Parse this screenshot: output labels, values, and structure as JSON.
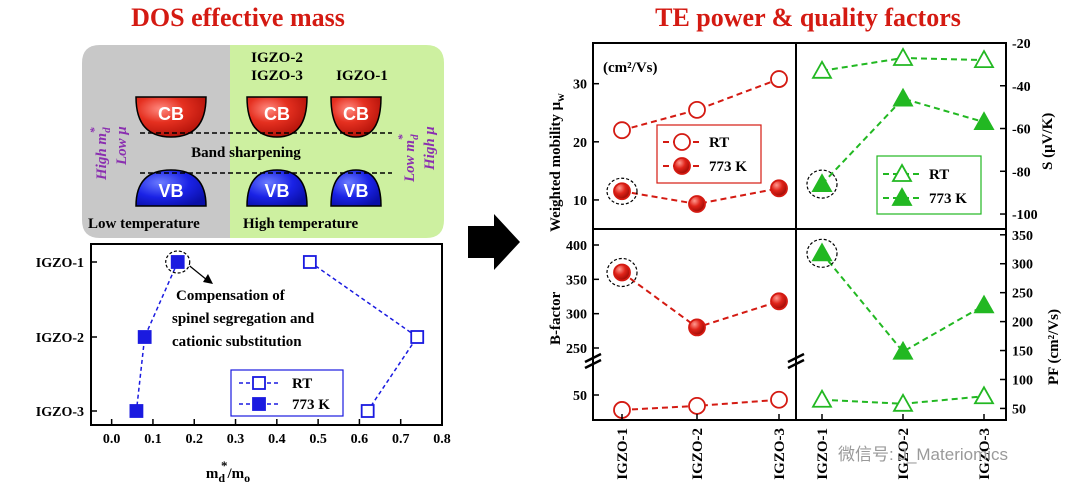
{
  "left_title": "DOS effective mass",
  "right_title": "TE power & quality factors",
  "schematic": {
    "cb": "CB",
    "vb": "VB",
    "band_sharpening": "Band sharpening",
    "low_temp": "Low temperature",
    "high_temp": "High temperature",
    "group1": "IGZO-2",
    "group1b": "IGZO-3",
    "group2": "IGZO-1",
    "left_high_md": "High m",
    "left_low_mu": "Low μ",
    "right_low_md": "Low m",
    "right_high_mu": "High μ",
    "md_sub": "d",
    "star": "*"
  },
  "colors": {
    "red": "#d41a12",
    "blue": "#1a1ae0",
    "green": "#22b822",
    "gray_bg": "#c8c8c8",
    "green_bg": "#cdf0a0",
    "purple": "#8a2fb0"
  },
  "chart_data": [
    {
      "id": "mass",
      "type": "scatter",
      "xlabel": "m",
      "xlabel_sub1": "d",
      "xlabel_star": "*",
      "xlabel_tail": "/m",
      "xlabel_sub2": "o",
      "xlim": [
        -0.05,
        0.8
      ],
      "xticks": [
        "0.0",
        "0.1",
        "0.2",
        "0.3",
        "0.4",
        "0.5",
        "0.6",
        "0.7",
        "0.8"
      ],
      "categories": [
        "IGZO-1",
        "IGZO-2",
        "IGZO-3"
      ],
      "series": [
        {
          "name": "RT",
          "values": [
            0.48,
            0.74,
            0.62
          ],
          "marker": "open-square"
        },
        {
          "name": "773 K",
          "values": [
            0.16,
            0.08,
            0.06
          ],
          "marker": "filled-square"
        }
      ],
      "annotation": [
        "Compensation of",
        "spinel segregation and",
        "cationic substitution"
      ]
    },
    {
      "id": "mobility",
      "type": "line",
      "ylabel": "Weighted mobility μ",
      "ylabel_sub": "w",
      "unit": "(cm²/Vs)",
      "ylim": [
        5,
        37
      ],
      "yticks": [
        10,
        20,
        30
      ],
      "categories": [
        "IGZO-1",
        "IGZO-2",
        "IGZO-3"
      ],
      "series": [
        {
          "name": "RT",
          "values": [
            22,
            25.5,
            30.8
          ]
        },
        {
          "name": "773 K",
          "values": [
            11.5,
            9.3,
            12
          ]
        }
      ]
    },
    {
      "id": "seebeck",
      "type": "line",
      "ylabel": "S (μV/K)",
      "ylim": [
        -107,
        -20
      ],
      "yticks": [
        -20,
        -40,
        -60,
        -80,
        -100
      ],
      "categories": [
        "IGZO-1",
        "IGZO-2",
        "IGZO-3"
      ],
      "series": [
        {
          "name": "RT",
          "values": [
            -33,
            -27,
            -28
          ]
        },
        {
          "name": "773 K",
          "values": [
            -86,
            -46,
            -57
          ]
        }
      ]
    },
    {
      "id": "bfactor",
      "type": "line",
      "ylabel": "B-factor",
      "yticks": [
        250,
        300,
        350,
        400,
        50
      ],
      "categories": [
        "IGZO-1",
        "IGZO-2",
        "IGZO-3"
      ],
      "series": [
        {
          "name": "RT",
          "values": [
            28,
            34,
            43
          ]
        },
        {
          "name": "773 K",
          "values": [
            360,
            280,
            318
          ]
        }
      ]
    },
    {
      "id": "pf",
      "type": "line",
      "ylabel": "PF (cm²/Vs)",
      "ylim": [
        30,
        360
      ],
      "yticks": [
        50,
        100,
        150,
        200,
        250,
        300,
        350
      ],
      "categories": [
        "IGZO-1",
        "IGZO-2",
        "IGZO-3"
      ],
      "series": [
        {
          "name": "RT",
          "values": [
            65,
            58,
            71
          ]
        },
        {
          "name": "773 K",
          "values": [
            318,
            148,
            228
          ]
        }
      ]
    }
  ],
  "watermark": "微信号: J_Materiomics"
}
